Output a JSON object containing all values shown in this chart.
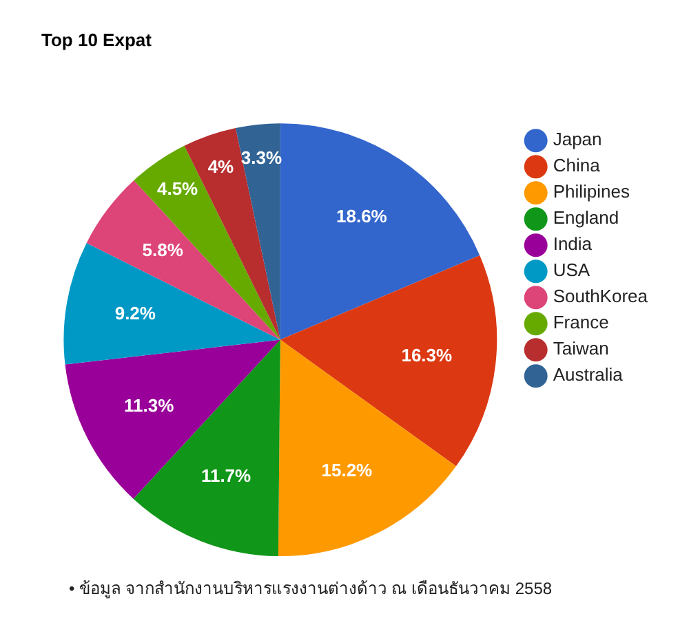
{
  "chart_data": {
    "type": "pie",
    "title": "Top 10 Expat",
    "categories": [
      "Japan",
      "China",
      "Philipines",
      "England",
      "India",
      "USA",
      "SouthKorea",
      "France",
      "Taiwan",
      "Australia"
    ],
    "values": [
      18.6,
      16.3,
      15.2,
      11.7,
      11.3,
      9.2,
      5.8,
      4.5,
      4,
      3.3
    ],
    "colors": [
      "#3366cc",
      "#dc3912",
      "#ff9900",
      "#109618",
      "#990099",
      "#0099c6",
      "#dd4477",
      "#66aa00",
      "#b82e2e",
      "#316395"
    ],
    "value_labels": [
      "18.6%",
      "16.3%",
      "15.2%",
      "11.7%",
      "11.3%",
      "9.2%",
      "5.8%",
      "4.5%",
      "4%",
      "3.3%"
    ],
    "legend": "right",
    "annotations": [
      "• ข้อมูล จากสำนักงานบริหารแรงงานต่างด้าว ณ เดือนธันวาคม 2558"
    ]
  }
}
